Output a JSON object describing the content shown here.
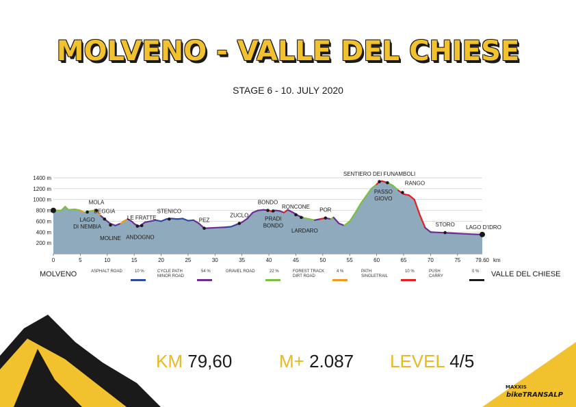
{
  "header": {
    "title": "MOLVENO - VALLE DEL CHIESE",
    "subtitle": "STAGE 6 - 10. JULY 2020"
  },
  "legend": {
    "start_label": "MOLVENO",
    "end_label": "VALLE DEL CHIESE",
    "items": [
      {
        "label": "ASPHALT ROAD",
        "pct": "10 %",
        "color": "#2f4aa0"
      },
      {
        "label": "CYCLE PATH MINOR ROAD",
        "pct": "54 %",
        "color": "#6b2d91"
      },
      {
        "label": "GRAVEL ROAD",
        "pct": "22 %",
        "color": "#7bc043"
      },
      {
        "label": "FOREST TRACK DIRT ROAD",
        "pct": "4 %",
        "color": "#f39a1e"
      },
      {
        "label": "PATH SINGLETRAIL",
        "pct": "10 %",
        "color": "#e31e24"
      },
      {
        "label": "PUSH CARRY",
        "pct": "0 %",
        "color": "#1a1a1a"
      }
    ]
  },
  "stats": {
    "km_key": "KM",
    "km_value": "79,60",
    "climb_key": "M+",
    "climb_value": "2.087",
    "level_key": "LEVEL",
    "level_value": "4/5"
  },
  "logo": {
    "brand_top": "MAXXIS",
    "brand_main": "bikeTRANSALP"
  },
  "colors": {
    "accent": "#f2c12e",
    "profile_fill": "#8fa9bd",
    "dark": "#1a1a1a"
  },
  "chart_data": {
    "type": "area",
    "xlabel": "km",
    "ylabel": "m",
    "xlim": [
      0,
      79.6
    ],
    "ylim": [
      0,
      1400
    ],
    "x_ticks": [
      0,
      5,
      10,
      15,
      20,
      25,
      30,
      35,
      40,
      45,
      50,
      55,
      60,
      65,
      70,
      75
    ],
    "x_tick_labels": [
      "0",
      "5",
      "10",
      "15",
      "20",
      "25",
      "30",
      "35",
      "40",
      "45",
      "50",
      "55",
      "60",
      "65",
      "70",
      "75"
    ],
    "x_end_label": "79.60",
    "x_unit": "km",
    "y_ticks": [
      200,
      400,
      600,
      800,
      1000,
      1200,
      1400
    ],
    "y_tick_labels": [
      "200 m",
      "400 m",
      "600 m",
      "800 m",
      "1000 m",
      "1200 m",
      "1400 m"
    ],
    "grid": true,
    "profile": [
      [
        0,
        800,
        "#7bc043"
      ],
      [
        1.5,
        800,
        "#7bc043"
      ],
      [
        2.2,
        870,
        "#7bc043"
      ],
      [
        2.8,
        810,
        "#7bc043"
      ],
      [
        4,
        820,
        "#7bc043"
      ],
      [
        5,
        800,
        "#7bc043"
      ],
      [
        5.8,
        760,
        "#f39a1e"
      ],
      [
        6.5,
        780,
        "#7bc043"
      ],
      [
        7.5,
        800,
        "#7bc043"
      ],
      [
        8,
        800,
        "#f39a1e"
      ],
      [
        8.8,
        700,
        "#f39a1e"
      ],
      [
        9.5,
        640,
        "#6b2d91"
      ],
      [
        10.5,
        560,
        "#6b2d91"
      ],
      [
        11.5,
        520,
        "#6b2d91"
      ],
      [
        12.5,
        560,
        "#6b2d91"
      ],
      [
        13,
        600,
        "#f39a1e"
      ],
      [
        13.8,
        640,
        "#f39a1e"
      ],
      [
        14.5,
        600,
        "#6b2d91"
      ],
      [
        15.2,
        540,
        "#6b2d91"
      ],
      [
        16,
        510,
        "#6b2d91"
      ],
      [
        17,
        580,
        "#6b2d91"
      ],
      [
        18,
        600,
        "#6b2d91"
      ],
      [
        19,
        620,
        "#6b2d91"
      ],
      [
        20,
        600,
        "#2f4aa0"
      ],
      [
        21,
        640,
        "#2f4aa0"
      ],
      [
        22,
        650,
        "#2f4aa0"
      ],
      [
        23,
        640,
        "#2f4aa0"
      ],
      [
        24,
        650,
        "#2f4aa0"
      ],
      [
        25,
        610,
        "#2f4aa0"
      ],
      [
        26,
        620,
        "#2f4aa0"
      ],
      [
        27,
        560,
        "#6b2d91"
      ],
      [
        28,
        470,
        "#6b2d91"
      ],
      [
        30,
        480,
        "#6b2d91"
      ],
      [
        32,
        490,
        "#6b2d91"
      ],
      [
        33,
        500,
        "#2f4aa0"
      ],
      [
        34,
        540,
        "#2f4aa0"
      ],
      [
        35,
        580,
        "#6b2d91"
      ],
      [
        36,
        650,
        "#6b2d91"
      ],
      [
        37,
        760,
        "#6b2d91"
      ],
      [
        38,
        800,
        "#6b2d91"
      ],
      [
        39,
        810,
        "#6b2d91"
      ],
      [
        40,
        800,
        "#6b2d91"
      ],
      [
        40.6,
        780,
        "#e31e24"
      ],
      [
        41.2,
        800,
        "#6b2d91"
      ],
      [
        42,
        790,
        "#6b2d91"
      ],
      [
        42.8,
        760,
        "#6b2d91"
      ],
      [
        43.5,
        810,
        "#e31e24"
      ],
      [
        44.5,
        760,
        "#6b2d91"
      ],
      [
        45.5,
        700,
        "#6b2d91"
      ],
      [
        46.5,
        660,
        "#6b2d91"
      ],
      [
        47.5,
        640,
        "#7bc043"
      ],
      [
        48.5,
        620,
        "#7bc043"
      ],
      [
        49.5,
        640,
        "#6b2d91"
      ],
      [
        50.5,
        660,
        "#e31e24"
      ],
      [
        51.5,
        640,
        "#6b2d91"
      ],
      [
        52,
        670,
        "#7bc043"
      ],
      [
        53,
        560,
        "#6b2d91"
      ],
      [
        54,
        520,
        "#6b2d91"
      ],
      [
        55,
        600,
        "#7bc043"
      ],
      [
        56,
        750,
        "#7bc043"
      ],
      [
        57,
        920,
        "#7bc043"
      ],
      [
        58,
        1060,
        "#7bc043"
      ],
      [
        59,
        1200,
        "#7bc043"
      ],
      [
        60,
        1280,
        "#7bc043"
      ],
      [
        60.5,
        1330,
        "#e31e24"
      ],
      [
        61,
        1340,
        "#e31e24"
      ],
      [
        62,
        1310,
        "#e31e24"
      ],
      [
        63,
        1260,
        "#7bc043"
      ],
      [
        64,
        1170,
        "#7bc043"
      ],
      [
        65,
        1100,
        "#e31e24"
      ],
      [
        66,
        1080,
        "#e31e24"
      ],
      [
        67,
        1000,
        "#e31e24"
      ],
      [
        68,
        720,
        "#e31e24"
      ],
      [
        69,
        480,
        "#e31e24"
      ],
      [
        70,
        400,
        "#6b2d91"
      ],
      [
        72,
        390,
        "#6b2d91"
      ],
      [
        74,
        380,
        "#6b2d91"
      ],
      [
        76,
        370,
        "#6b2d91"
      ],
      [
        78,
        360,
        "#6b2d91"
      ],
      [
        79.6,
        355,
        "#6b2d91"
      ]
    ],
    "waypoints": [
      {
        "name": "MOLVENO",
        "km": 0,
        "ele": 800,
        "label_pos": "none"
      },
      {
        "name": "MOLA",
        "km": 8,
        "ele": 800,
        "label_pos": "above"
      },
      {
        "name": "LAGO DI NEMBIA",
        "km": 6.3,
        "ele": 770,
        "label_pos": "below"
      },
      {
        "name": "DEGGIA",
        "km": 9.5,
        "ele": 640,
        "label_pos": "above"
      },
      {
        "name": "MOLINE",
        "km": 10.6,
        "ele": 530,
        "label_pos": "below"
      },
      {
        "name": "LE FRATTE",
        "km": 16.4,
        "ele": 520,
        "label_pos": "above"
      },
      {
        "name": "ANDOGNO",
        "km": 15.6,
        "ele": 510,
        "label_pos": "below"
      },
      {
        "name": "STENICO",
        "km": 21.5,
        "ele": 640,
        "label_pos": "above"
      },
      {
        "name": "PEZ",
        "km": 28,
        "ele": 470,
        "label_pos": "above"
      },
      {
        "name": "ZUCLO",
        "km": 34.5,
        "ele": 560,
        "label_pos": "above"
      },
      {
        "name": "BONDO",
        "km": 39.8,
        "ele": 800,
        "label_pos": "above"
      },
      {
        "name": "PRADI BONDO",
        "km": 40.8,
        "ele": 790,
        "label_pos": "below"
      },
      {
        "name": "RONCONE",
        "km": 45,
        "ele": 720,
        "label_pos": "above"
      },
      {
        "name": "LARDARO",
        "km": 46,
        "ele": 670,
        "label_pos": "below"
      },
      {
        "name": "POR",
        "km": 50.5,
        "ele": 660,
        "label_pos": "above"
      },
      {
        "name": "SENTIERO DEI FUNAMBOLI",
        "km": 60.5,
        "ele": 1330,
        "label_pos": "top"
      },
      {
        "name": "PASSO GIOVO",
        "km": 62,
        "ele": 1310,
        "label_pos": "below"
      },
      {
        "name": "RANGO",
        "km": 64.8,
        "ele": 1130,
        "label_pos": "above"
      },
      {
        "name": "STORO",
        "km": 72.7,
        "ele": 390,
        "label_pos": "above"
      },
      {
        "name": "LAGO D'IDRO",
        "km": 79.6,
        "ele": 355,
        "label_pos": "above"
      }
    ]
  }
}
